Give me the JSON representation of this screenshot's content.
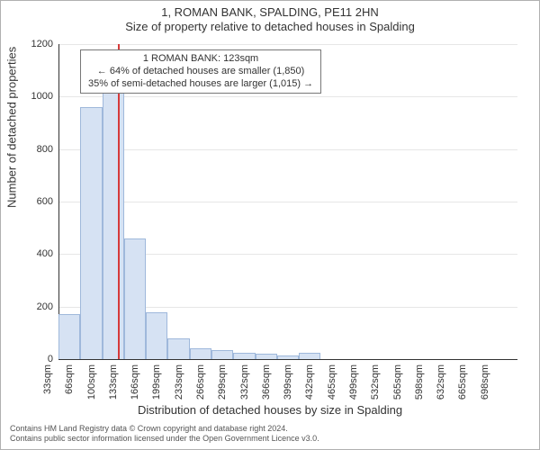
{
  "header": {
    "title": "1, ROMAN BANK, SPALDING, PE11 2HN",
    "subtitle": "Size of property relative to detached houses in Spalding"
  },
  "chart": {
    "type": "bar-histogram",
    "background_color": "#ffffff",
    "axis_color": "#333333",
    "grid_color": "#e6e6e6",
    "bar_fill": "#d6e2f3",
    "bar_stroke": "#9fb8db",
    "marker_color": "#d63a3a",
    "ylim": [
      0,
      1200
    ],
    "ytick_step": 200,
    "y_ticks": [
      0,
      200,
      400,
      600,
      800,
      1000,
      1200
    ],
    "x_ticks": [
      "33sqm",
      "66sqm",
      "100sqm",
      "133sqm",
      "166sqm",
      "199sqm",
      "233sqm",
      "266sqm",
      "299sqm",
      "332sqm",
      "366sqm",
      "399sqm",
      "432sqm",
      "465sqm",
      "499sqm",
      "532sqm",
      "565sqm",
      "598sqm",
      "632sqm",
      "665sqm",
      "698sqm"
    ],
    "bars": [
      170,
      960,
      1070,
      460,
      180,
      80,
      40,
      35,
      25,
      20,
      15,
      25,
      0,
      0,
      0,
      0,
      0,
      0,
      0,
      0,
      0
    ],
    "marker_x_index": 2.73,
    "ylabel": "Number of detached properties",
    "xlabel": "Distribution of detached houses by size in Spalding",
    "label_fontsize": 13,
    "tick_fontsize": 11
  },
  "annotation": {
    "line1": "1 ROMAN BANK: 123sqm",
    "line2": "← 64% of detached houses are smaller (1,850)",
    "line3": "35% of semi-detached houses are larger (1,015) →"
  },
  "footer": {
    "line1": "Contains HM Land Registry data © Crown copyright and database right 2024.",
    "line2": "Contains public sector information licensed under the Open Government Licence v3.0."
  }
}
